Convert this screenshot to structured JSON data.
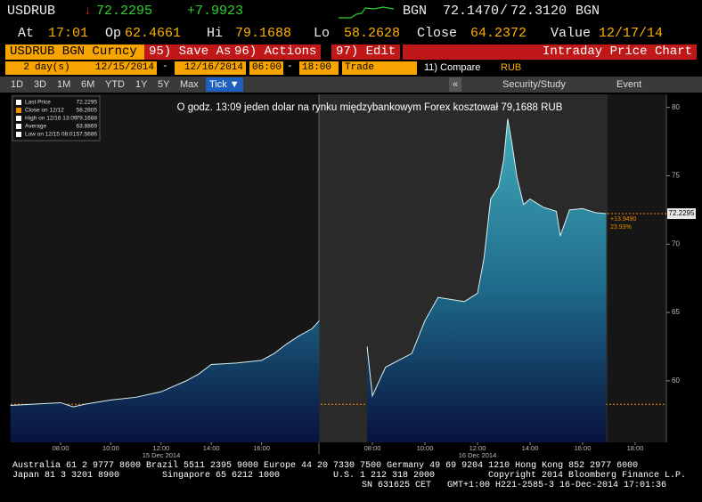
{
  "header": {
    "ticker": "USDRUB",
    "last": "72.2295",
    "change": "+7.9923",
    "source": "BGN",
    "bid": "72.1470",
    "sep": "/",
    "ask": "72.3120",
    "source2": "BGN",
    "fields": [
      {
        "label": "At",
        "value": "17:01"
      },
      {
        "label": "Op",
        "value": "62.4661"
      },
      {
        "label": "Hi",
        "value": "79.1688"
      },
      {
        "label": "Lo",
        "value": "58.2628"
      },
      {
        "label": "Close",
        "value": "64.2372"
      },
      {
        "label": "Value",
        "value": "12/17/14"
      }
    ]
  },
  "toolbar": {
    "security": "USDRUB BGN Curncy",
    "buttons": [
      "95) Save As",
      "96) Actions",
      "97) Edit"
    ],
    "view": "Intraday Price Chart"
  },
  "range": {
    "count": "2",
    "unit": "day(s)",
    "start": "12/15/2014",
    "dash": "-",
    "end": "12/16/2014",
    "from": "06:00",
    "dash2": "-",
    "to": "18:00",
    "mode": "Trade",
    "compare": "11) Compare",
    "currency": "RUB"
  },
  "periods": [
    "1D",
    "3D",
    "1M",
    "6M",
    "YTD",
    "1Y",
    "5Y",
    "Max",
    "Tick ▼"
  ],
  "tools": [
    "«",
    "Security/Study",
    "Event"
  ],
  "chart_data": {
    "type": "area",
    "annotation": "O godz. 13:09 jeden dolar na rynku międzybankowym Forex kosztował 79,1688 RUB",
    "legend": [
      {
        "label": "Last Price",
        "value": 72.2295,
        "color": "#ffffff"
      },
      {
        "label": "Close on 12/12",
        "value": 58.2805,
        "color": "#f08c00"
      },
      {
        "label": "High on 12/16 13:09",
        "value": 79.1688,
        "color": "#ffffff"
      },
      {
        "label": "Average",
        "value": 63.8869,
        "color": "#ffffff"
      },
      {
        "label": "Low on 12/15 08:01",
        "value": 57.5686,
        "color": "#ffffff"
      }
    ],
    "change_label": "+13.9490",
    "change_pct": "23.93%",
    "day_labels": [
      "15 Dec 2014",
      "16 Dec 2014"
    ],
    "x": [
      6,
      7,
      8,
      8.5,
      9,
      10,
      11,
      12,
      13,
      13.5,
      14,
      15,
      16,
      16.5,
      17,
      17.5,
      18,
      18.3,
      31.8,
      32,
      32.5,
      33,
      33.5,
      34,
      34.5,
      35.5,
      36,
      36.25,
      36.5,
      36.8,
      37,
      37.15,
      37.3,
      37.5,
      37.75,
      38,
      38.5,
      39,
      39.15,
      39.5,
      40,
      40.5,
      40.9
    ],
    "values": [
      58.2,
      58.3,
      58.4,
      58.1,
      58.3,
      58.6,
      58.8,
      59.2,
      60.0,
      60.5,
      61.2,
      61.3,
      61.5,
      62.0,
      62.7,
      63.3,
      63.8,
      64.4,
      62.5,
      58.9,
      61.0,
      61.5,
      62.0,
      64.4,
      66.1,
      65.8,
      66.4,
      69.0,
      73.3,
      74.2,
      76.2,
      79.1688,
      77.5,
      74.9,
      72.9,
      73.3,
      72.7,
      72.4,
      70.6,
      72.5,
      72.6,
      72.3,
      72.2295
    ],
    "color": "#3aa6b4",
    "ylim": [
      55.5,
      80.5
    ],
    "yticks": [
      60,
      65,
      70,
      75,
      80
    ],
    "xticks": [
      {
        "value": 8,
        "label": "08:00"
      },
      {
        "value": 10,
        "label": "10:00"
      },
      {
        "value": 12,
        "label": "12:00"
      },
      {
        "value": 14,
        "label": "14:00"
      },
      {
        "value": 16,
        "label": "16:00"
      },
      {
        "value": 32,
        "label": "08:00"
      },
      {
        "value": 34,
        "label": "10:00"
      },
      {
        "value": 36,
        "label": "12:00"
      },
      {
        "value": 38,
        "label": "14:00"
      },
      {
        "value": 40,
        "label": "16:00"
      },
      {
        "value": 42,
        "label": "18:00"
      }
    ]
  },
  "footer": {
    "line1": "Australia 61 2 9777 8600 Brazil 5511 2395 9000 Europe 44 20 7330 7500 Germany 49 69 9204 1210 Hong Kong 852 2977 6000",
    "japan": "Japan 81 3 3201 8900",
    "singapore": "Singapore 65 6212 1000",
    "us": "U.S. 1 212 318 2000",
    "copyright": "Copyright 2014 Bloomberg Finance L.P.",
    "sn": "SN 631625 CET",
    "stamp": "GMT+1:00 H221-2585-3 16-Dec-2014 17:01:36"
  }
}
